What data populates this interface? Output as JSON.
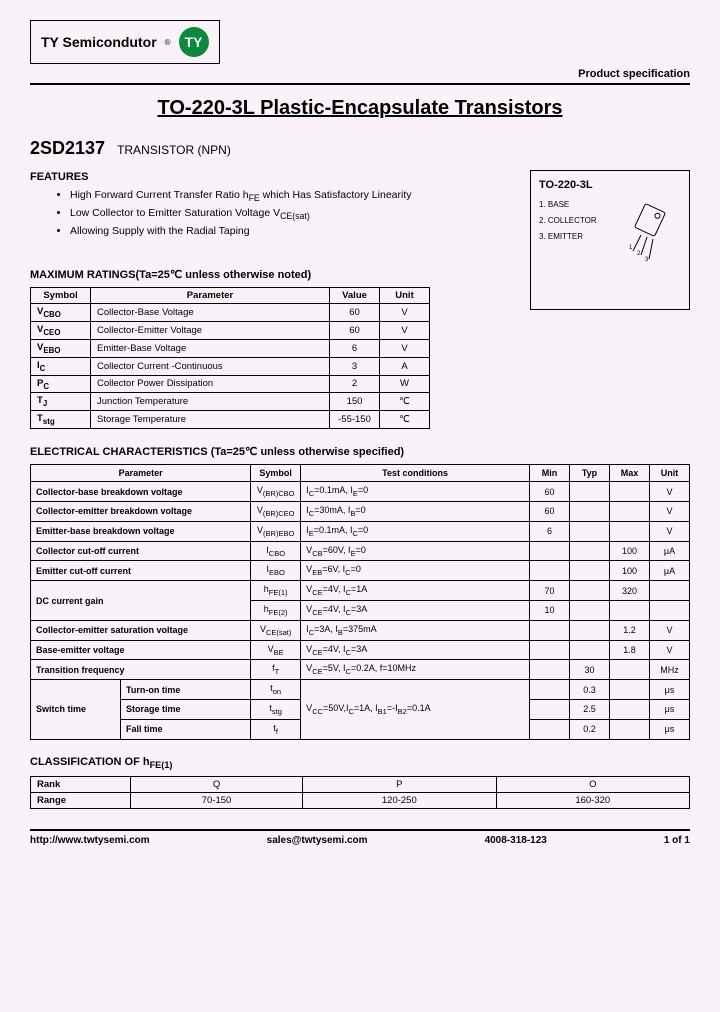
{
  "header": {
    "company": "TY Semicondutor",
    "logo_text": "TY",
    "logo_bg": "#0a8a3a",
    "spec_label": "Product specification"
  },
  "title": "TO-220-3L Plastic-Encapsulate Transistors",
  "part": {
    "number": "2SD2137",
    "type": "TRANSISTOR (NPN)"
  },
  "features": {
    "heading": "FEATURES",
    "items": [
      "High Forward Current Transfer Ratio h<sub>FE</sub> which Has Satisfactory Linearity",
      "Low Collector to Emitter Saturation Voltage V<sub>CE(sat)</sub>",
      "Allowing Supply with the Radial Taping"
    ]
  },
  "package": {
    "title": "TO-220-3L",
    "pins": [
      "1. BASE",
      "2. COLLECTOR",
      "3. EMITTER"
    ]
  },
  "max_ratings": {
    "heading": "MAXIMUM RATINGS(Ta=25℃ unless otherwise noted)",
    "headers": [
      "Symbol",
      "Parameter",
      "Value",
      "Unit"
    ],
    "rows": [
      [
        "V<sub>CBO</sub>",
        "Collector-Base Voltage",
        "60",
        "V"
      ],
      [
        "V<sub>CEO</sub>",
        "Collector-Emitter Voltage",
        "60",
        "V"
      ],
      [
        "V<sub>EBO</sub>",
        "Emitter-Base Voltage",
        "6",
        "V"
      ],
      [
        "I<sub>C</sub>",
        "Collector Current -Continuous",
        "3",
        "A"
      ],
      [
        "P<sub>C</sub>",
        "Collector Power Dissipation",
        "2",
        "W"
      ],
      [
        "T<sub>J</sub>",
        "Junction Temperature",
        "150",
        "℃"
      ],
      [
        "T<sub>stg</sub>",
        "Storage Temperature",
        "-55-150",
        "℃"
      ]
    ]
  },
  "elec": {
    "heading": "ELECTRICAL CHARACTERISTICS (Ta=25℃ unless otherwise specified)",
    "headers": [
      "Parameter",
      "Symbol",
      "Test    conditions",
      "Min",
      "Typ",
      "Max",
      "Unit"
    ]
  },
  "classification": {
    "heading": "CLASSIFICATION OF   h<sub>FE(1)</sub>",
    "rank_label": "Rank",
    "range_label": "Range",
    "ranks": [
      "Q",
      "P",
      "O"
    ],
    "ranges": [
      "70-150",
      "120-250",
      "160-320"
    ]
  },
  "footer": {
    "url": "http://www.twtysemi.com",
    "email": "sales@twtysemi.com",
    "phone": "4008-318-123",
    "page": "1 of 1"
  }
}
